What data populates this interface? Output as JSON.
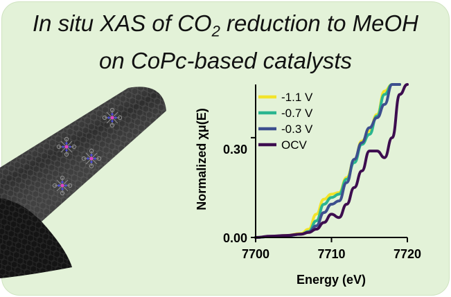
{
  "title": {
    "line1_before": "In situ XAS of CO",
    "line1_sub": "2",
    "line1_after": " reduction to MeOH",
    "line2": "on CoPc-based catalysts"
  },
  "illustration": {
    "subject": "carbon-nanotube-with-copc-molecules-icon"
  },
  "chart_data": {
    "type": "line",
    "title": "",
    "xlabel": "Energy (eV)",
    "ylabel": "Normalized χμ(E)",
    "xlim": [
      7700,
      7720
    ],
    "ylim": [
      0,
      0.46
    ],
    "xticks": [
      "7700",
      "7710",
      "7720"
    ],
    "yticks": [
      "0.00",
      "0.30"
    ],
    "xtick_values": [
      7700,
      7710,
      7720
    ],
    "ytick_values": [
      0,
      0.3
    ],
    "grid": false,
    "legend_position": "top-left",
    "series": [
      {
        "name": "-1.1 V",
        "color": "#f2e42a",
        "x": [
          7700,
          7702,
          7704,
          7706,
          7707,
          7708,
          7709,
          7710,
          7711,
          7712,
          7713,
          7714,
          7715,
          7716,
          7717,
          7718,
          7719
        ],
        "y": [
          0.0,
          0.003,
          0.006,
          0.012,
          0.025,
          0.07,
          0.115,
          0.13,
          0.135,
          0.18,
          0.23,
          0.29,
          0.32,
          0.37,
          0.44,
          0.47,
          0.47
        ]
      },
      {
        "name": "-0.7 V",
        "color": "#2bb590",
        "x": [
          7700,
          7702,
          7704,
          7706,
          7707,
          7708,
          7709,
          7710,
          7711,
          7712,
          7713,
          7714,
          7715,
          7716,
          7717,
          7718,
          7719
        ],
        "y": [
          0.0,
          0.003,
          0.005,
          0.01,
          0.018,
          0.05,
          0.1,
          0.12,
          0.13,
          0.175,
          0.225,
          0.28,
          0.31,
          0.365,
          0.43,
          0.47,
          0.47
        ]
      },
      {
        "name": "-0.3 V",
        "color": "#3d4f8e",
        "x": [
          7700,
          7702,
          7704,
          7706,
          7707,
          7708,
          7709,
          7710,
          7711,
          7712,
          7713,
          7714,
          7715,
          7716,
          7717,
          7718,
          7719
        ],
        "y": [
          0.0,
          0.003,
          0.005,
          0.01,
          0.016,
          0.035,
          0.075,
          0.1,
          0.11,
          0.165,
          0.235,
          0.285,
          0.33,
          0.36,
          0.4,
          0.47,
          0.47
        ]
      },
      {
        "name": "OCV",
        "color": "#3d0d4f",
        "x": [
          7700,
          7702,
          7704,
          7706,
          7707,
          7708,
          7709,
          7710,
          7711,
          7712,
          7713,
          7714,
          7715,
          7716,
          7717,
          7718,
          7719,
          7720
        ],
        "y": [
          0.0,
          0.004,
          0.006,
          0.01,
          0.015,
          0.025,
          0.045,
          0.07,
          0.06,
          0.1,
          0.15,
          0.2,
          0.26,
          0.26,
          0.24,
          0.3,
          0.43,
          0.47
        ]
      }
    ]
  }
}
